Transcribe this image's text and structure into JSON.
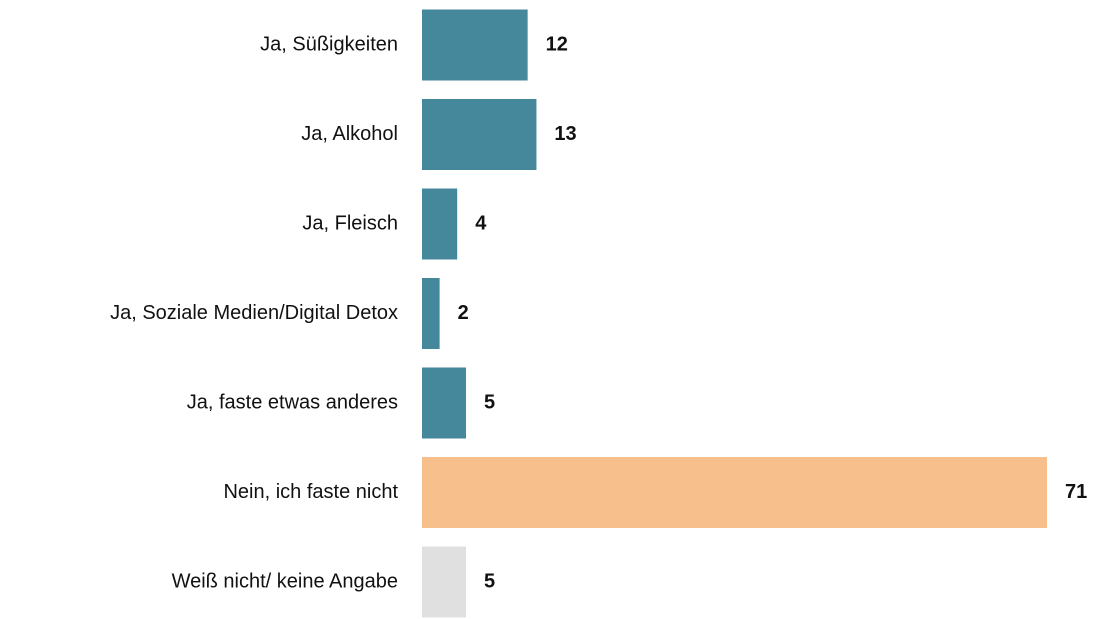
{
  "chart_data": {
    "type": "bar",
    "orientation": "horizontal",
    "categories": [
      "Ja, Süßigkeiten",
      "Ja, Alkohol",
      "Ja, Fleisch",
      "Ja, Soziale Medien/Digital Detox",
      "Ja, faste etwas anderes",
      "Nein, ich faste nicht",
      "Weiß nicht/ keine Angabe"
    ],
    "values": [
      12,
      13,
      4,
      2,
      5,
      71,
      5
    ],
    "colors": [
      "#45879b",
      "#45879b",
      "#45879b",
      "#45879b",
      "#45879b",
      "#f6bf8c",
      "#e0e0e0"
    ]
  }
}
